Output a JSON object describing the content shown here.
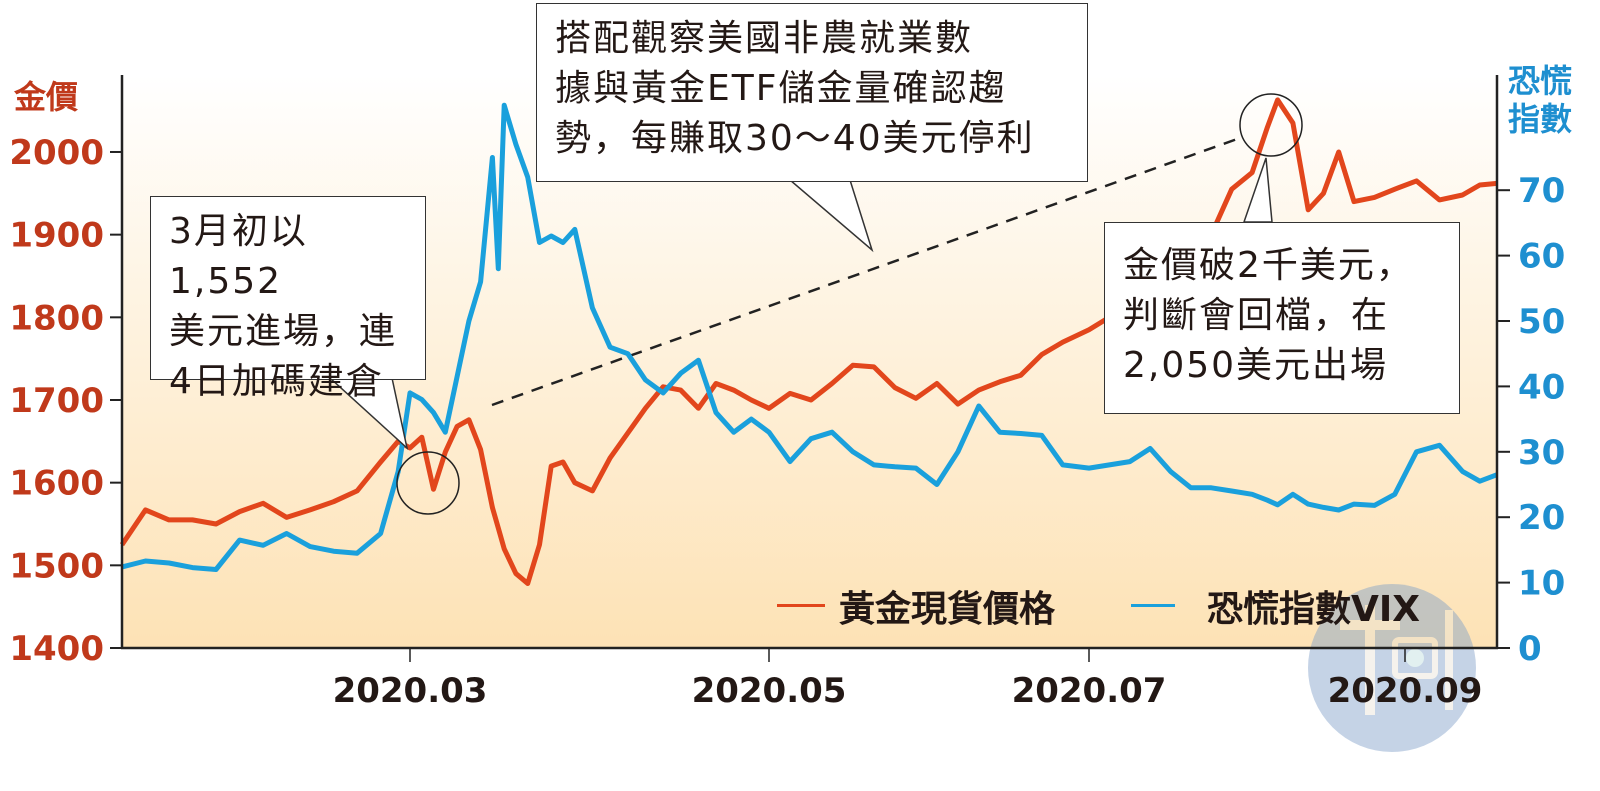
{
  "chart_data": {
    "type": "line",
    "left_axis": {
      "title": "金價",
      "ticks": [
        1400,
        1500,
        1600,
        1700,
        1800,
        1900,
        2000
      ],
      "range": [
        1400,
        2060
      ]
    },
    "right_axis": {
      "title": "恐慌指數",
      "ticks": [
        0,
        10,
        20,
        30,
        40,
        50,
        60,
        70
      ],
      "range": [
        0,
        85
      ]
    },
    "x_ticks": [
      {
        "label": "2020.03",
        "date": "2020-03-01"
      },
      {
        "label": "2020.05",
        "date": "2020-05-01"
      },
      {
        "label": "2020.07",
        "date": "2020-07-01"
      },
      {
        "label": "2020.09",
        "date": "2020-09-01"
      }
    ],
    "x_range": [
      "2020-01-12",
      "2020-09-17"
    ],
    "dates": [
      "2020-01-12",
      "2020-01-16",
      "2020-01-20",
      "2020-01-24",
      "2020-01-28",
      "2020-02-01",
      "2020-02-05",
      "2020-02-09",
      "2020-02-13",
      "2020-02-17",
      "2020-02-21",
      "2020-02-25",
      "2020-02-28",
      "2020-03-01",
      "2020-03-03",
      "2020-03-05",
      "2020-03-07",
      "2020-03-09",
      "2020-03-11",
      "2020-03-13",
      "2020-03-15",
      "2020-03-16",
      "2020-03-17",
      "2020-03-19",
      "2020-03-21",
      "2020-03-23",
      "2020-03-25",
      "2020-03-27",
      "2020-03-29",
      "2020-04-01",
      "2020-04-04",
      "2020-04-07",
      "2020-04-10",
      "2020-04-13",
      "2020-04-16",
      "2020-04-19",
      "2020-04-22",
      "2020-04-25",
      "2020-04-28",
      "2020-05-01",
      "2020-05-05",
      "2020-05-09",
      "2020-05-13",
      "2020-05-17",
      "2020-05-21",
      "2020-05-25",
      "2020-05-29",
      "2020-06-02",
      "2020-06-06",
      "2020-06-10",
      "2020-06-14",
      "2020-06-18",
      "2020-06-22",
      "2020-06-26",
      "2020-07-01",
      "2020-07-05",
      "2020-07-09",
      "2020-07-13",
      "2020-07-17",
      "2020-07-21",
      "2020-07-25",
      "2020-07-29",
      "2020-08-02",
      "2020-08-05",
      "2020-08-07",
      "2020-08-10",
      "2020-08-13",
      "2020-08-16",
      "2020-08-19",
      "2020-08-22",
      "2020-08-26",
      "2020-08-30",
      "2020-09-03",
      "2020-09-07",
      "2020-09-11",
      "2020-09-14",
      "2020-09-17"
    ],
    "series": [
      {
        "name": "黃金現貨價格",
        "axis": "left",
        "color": "#e2461c",
        "values": [
          1525,
          1567,
          1555,
          1555,
          1550,
          1565,
          1575,
          1558,
          1567,
          1577,
          1590,
          1625,
          1650,
          1642,
          1655,
          1592,
          1637,
          1668,
          1676,
          1640,
          1570,
          1545,
          1520,
          1490,
          1478,
          1525,
          1620,
          1625,
          1600,
          1590,
          1630,
          1660,
          1690,
          1716,
          1712,
          1690,
          1720,
          1712,
          1700,
          1690,
          1708,
          1700,
          1720,
          1742,
          1740,
          1715,
          1702,
          1720,
          1695,
          1712,
          1722,
          1730,
          1755,
          1770,
          1785,
          1800,
          1810,
          1810,
          1815,
          1845,
          1900,
          1955,
          1975,
          2030,
          2063,
          2035,
          1930,
          1950,
          2000,
          1940,
          1945,
          1955,
          1965,
          1942,
          1948,
          1960,
          1962
        ]
      },
      {
        "name": "恐慌指數VIX",
        "axis": "right",
        "color": "#1aa0dc",
        "values": [
          12.4,
          13.3,
          13.0,
          12.3,
          12.0,
          16.5,
          15.7,
          17.5,
          15.5,
          14.8,
          14.5,
          17.5,
          27,
          39,
          38,
          36,
          33,
          41.5,
          50,
          56,
          75,
          58,
          83,
          77,
          72,
          62,
          63,
          62,
          64,
          52,
          46,
          45,
          41,
          39,
          42,
          44,
          36,
          33,
          35,
          33,
          28.5,
          32,
          33,
          30,
          28,
          27.7,
          27.5,
          25,
          30,
          37,
          33,
          32.8,
          32.5,
          28,
          27.5,
          28,
          28.5,
          30.5,
          27,
          24.5,
          24.5,
          24,
          23.5,
          22.6,
          21.9,
          23.5,
          22,
          21.5,
          21.1,
          22,
          21.8,
          23.5,
          30,
          31,
          27,
          25.5,
          26.5
        ]
      }
    ],
    "legend": {
      "placement": "bottom-right",
      "items": [
        "黃金現貨價格",
        "恐慌指數VIX"
      ]
    },
    "annotations": [
      {
        "text": "3月初以1,552\n美元進場，連\n4日加碼建倉"
      },
      {
        "text": "搭配觀察美國非農就業數\n據與黃金ETF儲金量確認趨\n勢，每賺取30～40美元停利"
      },
      {
        "text": "金價破2千美元，\n判斷會回檔，在\n2,050美元出場"
      }
    ],
    "grid": false,
    "background": "gradient white to #fde2b5"
  },
  "watermark": {
    "text": "鏡週刊"
  }
}
